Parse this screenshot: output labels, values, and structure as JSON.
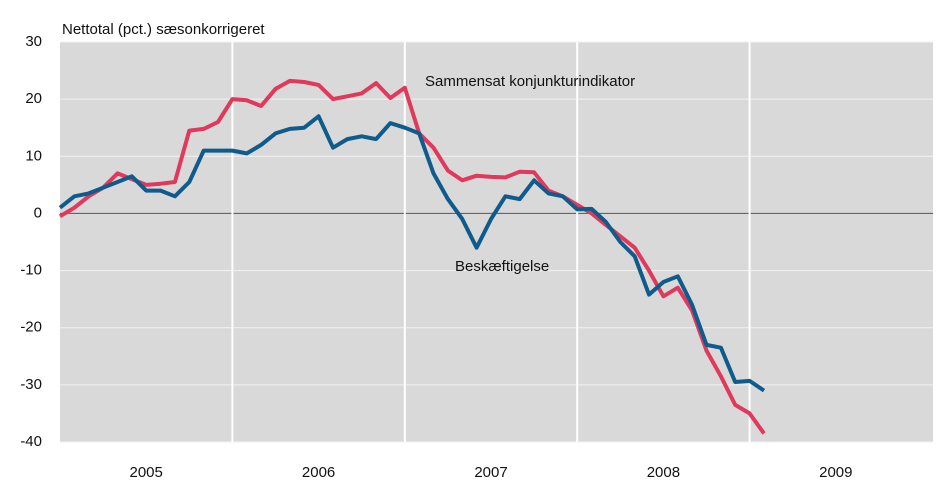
{
  "chart_data": {
    "type": "line",
    "ylabel": "Nettotal (pct.) sæsonkorrigeret",
    "annotations": [
      {
        "text": "Sammensat konjunkturindikator",
        "series": 0
      },
      {
        "text": "Beskæftigelse",
        "series": 1
      }
    ],
    "x": [
      2005,
      2005.0833,
      2005.1667,
      2005.25,
      2005.3333,
      2005.4167,
      2005.5,
      2005.5833,
      2005.6667,
      2005.75,
      2005.8333,
      2005.9167,
      2006,
      2006.0833,
      2006.1667,
      2006.25,
      2006.3333,
      2006.4167,
      2006.5,
      2006.5833,
      2006.6667,
      2006.75,
      2006.8333,
      2006.9167,
      2007,
      2007.0833,
      2007.1667,
      2007.25,
      2007.3333,
      2007.4167,
      2007.5,
      2007.5833,
      2007.6667,
      2007.75,
      2007.8333,
      2007.9167,
      2008,
      2008.0833,
      2008.1667,
      2008.25,
      2008.3333,
      2008.4167,
      2008.5,
      2008.5833,
      2008.6667,
      2008.75,
      2008.8333,
      2008.9167,
      2009,
      2009.0833
    ],
    "series": [
      {
        "name": "Sammensat konjunkturindikator",
        "color": "#e0395c",
        "values": [
          -0.5,
          1,
          3,
          4.5,
          7,
          6,
          5,
          5.2,
          5.5,
          14.5,
          14.8,
          16,
          20,
          19.8,
          18.8,
          21.8,
          23.2,
          23,
          22.5,
          20,
          20.5,
          21,
          22.8,
          20.2,
          22,
          14,
          11.5,
          7.5,
          5.8,
          6.6,
          6.4,
          6.3,
          7.3,
          7.2,
          4,
          3,
          1.5,
          0,
          -2,
          -4,
          -6,
          -10,
          -14.5,
          -13,
          -17,
          -24,
          -28.5,
          -33.5,
          -35,
          -38.5
        ]
      },
      {
        "name": "Beskæftigelse",
        "color": "#0f5b8c",
        "values": [
          1,
          3,
          3.5,
          4.5,
          5.5,
          6.5,
          4,
          4,
          3,
          5.5,
          11,
          11,
          11,
          10.5,
          12,
          14,
          14.8,
          15,
          17,
          11.5,
          13,
          13.5,
          13,
          15.8,
          15,
          14,
          7,
          2.5,
          -1,
          -6,
          -1,
          3,
          2.5,
          5.8,
          3.5,
          3,
          0.7,
          0.8,
          -1.5,
          -5,
          -7.5,
          -14.2,
          -12,
          -11,
          -16,
          -23,
          -23.5,
          -29.5,
          -29.3,
          -31
        ]
      }
    ],
    "xlim": [
      2005,
      2010
    ],
    "xticks": [
      {
        "value": 2005.5,
        "label": "2005"
      },
      {
        "value": 2006.5,
        "label": "2006"
      },
      {
        "value": 2007.5,
        "label": "2007"
      },
      {
        "value": 2008.5,
        "label": "2008"
      },
      {
        "value": 2009.5,
        "label": "2009"
      }
    ],
    "ylim": [
      -40,
      30
    ],
    "yticks": [
      -40,
      -30,
      -20,
      -10,
      0,
      10,
      20,
      30
    ],
    "grid": true
  }
}
